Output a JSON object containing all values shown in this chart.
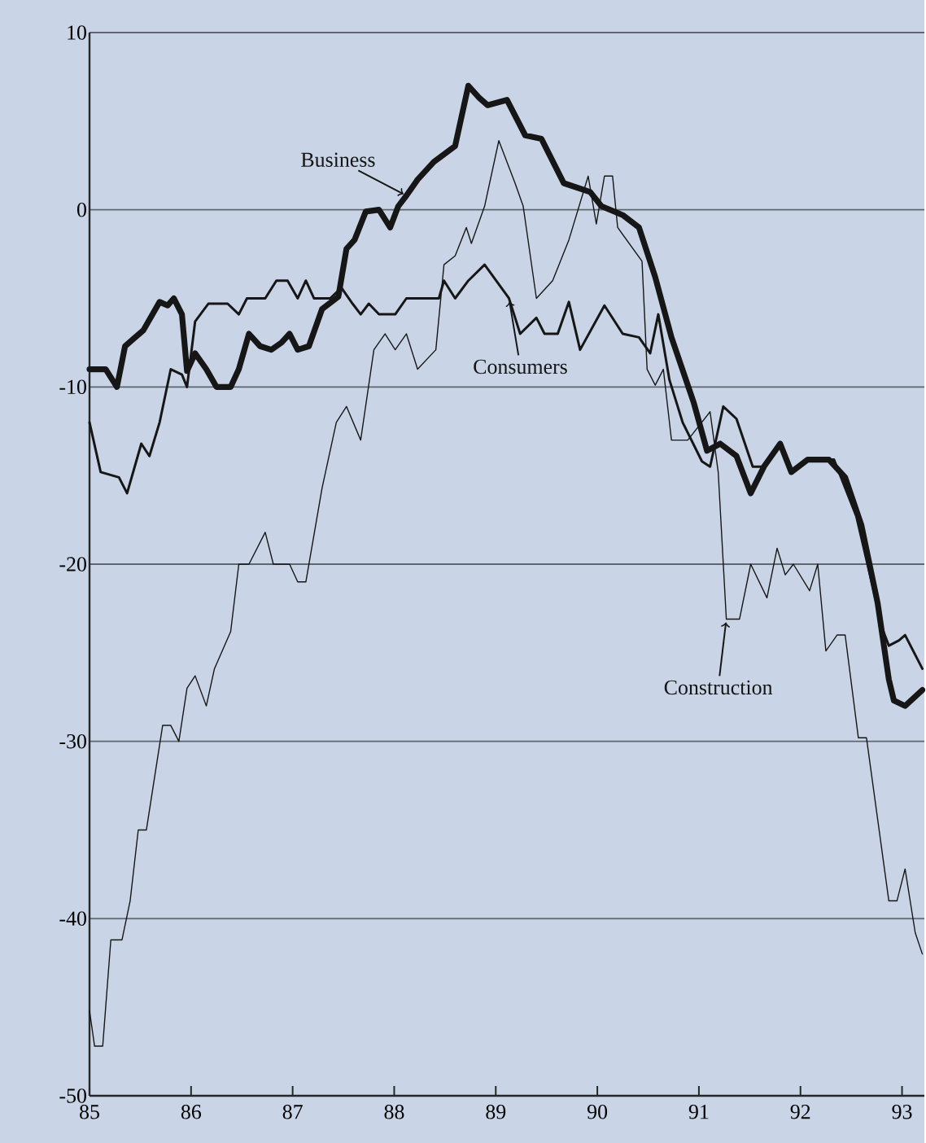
{
  "chart_data": {
    "type": "line",
    "xlim": [
      85,
      93.22
    ],
    "ylim": [
      -50,
      10
    ],
    "xticks": [
      85,
      86,
      87,
      88,
      89,
      90,
      91,
      92,
      93
    ],
    "yticks": [
      -50,
      -40,
      -30,
      -20,
      -10,
      0,
      10
    ],
    "grid": "y",
    "line_style": "solid",
    "series": [
      {
        "name": "Business",
        "color": "#161616",
        "x": [
          85,
          85.16,
          85.27,
          85.35,
          85.43,
          85.53,
          85.69,
          85.77,
          85.83,
          85.91,
          85.96,
          86.04,
          86.15,
          86.25,
          86.39,
          86.47,
          86.57,
          86.68,
          86.79,
          86.89,
          86.97,
          87.05,
          87.16,
          87.29,
          87.45,
          87.53,
          87.61,
          87.72,
          87.85,
          87.96,
          88.04,
          88.12,
          88.23,
          88.39,
          88.6,
          88.73,
          88.84,
          88.92,
          89.11,
          89.29,
          89.45,
          89.67,
          89.93,
          90.04,
          90.25,
          90.41,
          90.57,
          90.73,
          90.95,
          91.08,
          91.21,
          91.37,
          91.51,
          91.64,
          91.8,
          91.91,
          92.07,
          92.28,
          92.44,
          92.6,
          92.76,
          92.87,
          92.92,
          93.03,
          93.2
        ],
        "values": [
          -9,
          -9,
          -10,
          -7.7,
          -7.3,
          -6.8,
          -5.2,
          -5.4,
          -5,
          -5.9,
          -9.1,
          -8.1,
          -9,
          -10,
          -10,
          -9,
          -7,
          -7.7,
          -7.9,
          -7.5,
          -7,
          -7.9,
          -7.7,
          -5.6,
          -4.9,
          -2.2,
          -1.7,
          -0.1,
          0,
          -1,
          0.2,
          0.8,
          1.7,
          2.7,
          3.6,
          7,
          6.3,
          5.9,
          6.2,
          4.2,
          4.0,
          1.5,
          1.0,
          0.2,
          -0.3,
          -1,
          -3.8,
          -7.2,
          -10.9,
          -13.6,
          -13.2,
          -13.9,
          -16,
          -14.5,
          -13.2,
          -14.8,
          -14.1,
          -14.1,
          -15.1,
          -17.8,
          -22.2,
          -26.5,
          -27.7,
          -28,
          -27.1
        ]
      },
      {
        "name": "Consumers",
        "color": "#161616",
        "x": [
          85,
          85.11,
          85.29,
          85.37,
          85.51,
          85.59,
          85.69,
          85.8,
          85.91,
          85.96,
          86.04,
          86.17,
          86.36,
          86.47,
          86.55,
          86.73,
          86.84,
          86.95,
          87.05,
          87.13,
          87.21,
          87.37,
          87.48,
          87.59,
          87.67,
          87.75,
          87.85,
          88.01,
          88.12,
          88.44,
          88.49,
          88.6,
          88.73,
          88.89,
          89.13,
          89.24,
          89.4,
          89.48,
          89.61,
          89.72,
          89.83,
          90.07,
          90.25,
          90.41,
          90.52,
          90.6,
          90.71,
          90.84,
          91.03,
          91.11,
          91.24,
          91.37,
          91.53,
          91.64,
          91.8,
          91.91,
          92.07,
          92.33,
          92.55,
          92.81,
          92.87,
          92.97,
          93.03,
          93.2
        ],
        "values": [
          -12,
          -14.8,
          -15.1,
          -16,
          -13.2,
          -13.9,
          -12,
          -9,
          -9.3,
          -10,
          -6.3,
          -5.3,
          -5.3,
          -5.9,
          -5,
          -5,
          -4,
          -4,
          -5,
          -4,
          -5,
          -5,
          -4.4,
          -5.3,
          -5.9,
          -5.3,
          -5.9,
          -5.9,
          -5,
          -5,
          -4,
          -5,
          -4,
          -3.1,
          -5,
          -7,
          -6.1,
          -7,
          -7,
          -5.2,
          -7.9,
          -5.4,
          -7,
          -7.2,
          -8.1,
          -5.9,
          -9.6,
          -12,
          -14.2,
          -14.5,
          -11.1,
          -11.8,
          -14.5,
          -14.5,
          -13.2,
          -14.8,
          -14.1,
          -14.1,
          -17.3,
          -23.7,
          -24.6,
          -24.3,
          -24,
          -25.9
        ]
      },
      {
        "name": "Construction",
        "color": "#161616",
        "x": [
          85,
          85.05,
          85.13,
          85.21,
          85.32,
          85.4,
          85.48,
          85.56,
          85.72,
          85.8,
          85.88,
          85.96,
          86.04,
          86.15,
          86.23,
          86.39,
          86.47,
          86.57,
          86.73,
          86.81,
          86.97,
          87.05,
          87.13,
          87.29,
          87.43,
          87.53,
          87.67,
          87.8,
          87.91,
          88.01,
          88.12,
          88.23,
          88.41,
          88.49,
          88.6,
          88.71,
          88.76,
          88.89,
          89.03,
          89.19,
          89.27,
          89.4,
          89.56,
          89.72,
          89.91,
          89.99,
          90.07,
          90.15,
          90.2,
          90.44,
          90.49,
          90.57,
          90.65,
          90.73,
          90.89,
          91.11,
          91.19,
          91.27,
          91.4,
          91.51,
          91.67,
          91.77,
          91.85,
          91.93,
          92.09,
          92.17,
          92.25,
          92.36,
          92.44,
          92.57,
          92.65,
          92.87,
          92.95,
          93.03,
          93.13,
          93.2
        ],
        "values": [
          -45.2,
          -47.2,
          -47.2,
          -41.2,
          -41.2,
          -39,
          -35,
          -35,
          -29.1,
          -29.1,
          -30,
          -27,
          -26.3,
          -28,
          -25.9,
          -23.8,
          -20,
          -20,
          -18.2,
          -20,
          -20,
          -21,
          -21,
          -15.7,
          -12,
          -11.1,
          -13,
          -7.9,
          -7,
          -7.9,
          -7,
          -9,
          -7.9,
          -3.1,
          -2.6,
          -1,
          -1.9,
          0.2,
          3.9,
          1.5,
          0.2,
          -5,
          -4,
          -1.7,
          1.9,
          -0.8,
          1.9,
          1.9,
          -1,
          -2.9,
          -9,
          -9.9,
          -9,
          -13,
          -13,
          -11.4,
          -14.8,
          -23.1,
          -23.1,
          -20,
          -21.9,
          -19.1,
          -20.6,
          -20,
          -21.5,
          -20,
          -24.9,
          -24,
          -24,
          -29.8,
          -29.8,
          -39,
          -39,
          -37.2,
          -40.8,
          -42
        ]
      }
    ]
  }
}
